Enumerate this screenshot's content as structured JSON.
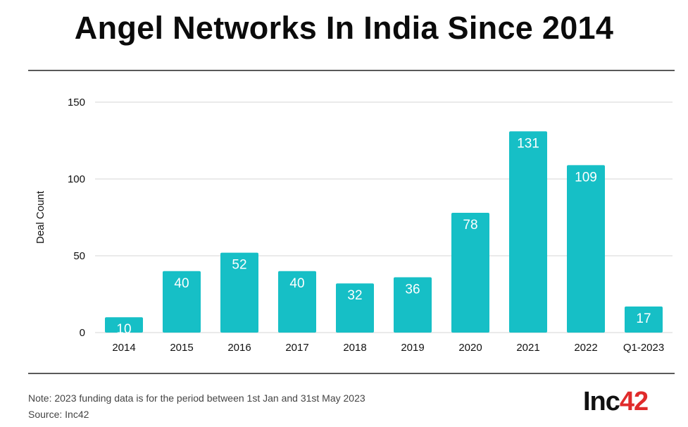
{
  "title": "Angel Networks In India Since 2014",
  "footer": {
    "note": "Note: 2023 funding data is for the period between 1st Jan and 31st May 2023",
    "source": "Source: Inc42"
  },
  "logo": {
    "text": "Inc",
    "accent": "42",
    "accent_color": "#e02b2b"
  },
  "chart_data": {
    "type": "bar",
    "title": "",
    "xlabel": "",
    "ylabel": "Deal Count",
    "categories": [
      "2014",
      "2015",
      "2016",
      "2017",
      "2018",
      "2019",
      "2020",
      "2021",
      "2022",
      "Q1-2023"
    ],
    "values": [
      10,
      40,
      52,
      40,
      32,
      36,
      78,
      131,
      109,
      17
    ],
    "data_labels": [
      "10",
      "40",
      "52",
      "40",
      "32",
      "36",
      "78",
      "131",
      "109",
      "17"
    ],
    "ylim": [
      0,
      150
    ],
    "yticks": [
      0,
      50,
      100,
      150
    ],
    "grid": true,
    "bar_color": "#16bfc6",
    "label_color": "#ffffff"
  }
}
